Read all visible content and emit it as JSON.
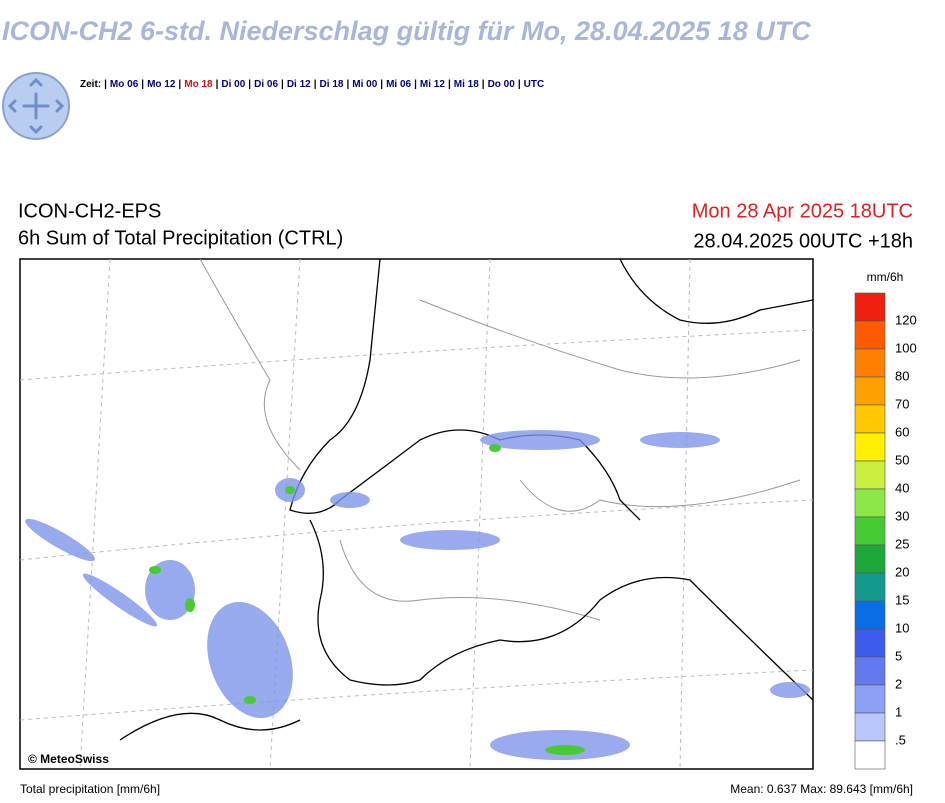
{
  "header": {
    "title": "ICON-CH2 6-std. Niederschlag gültig für Mo, 28.04.2025 18 UTC"
  },
  "nav": {
    "label": "Zeit:",
    "separator": "|",
    "links": [
      "Mo 06",
      "Mo 12",
      "Mo 18",
      "Di 00",
      "Di 06",
      "Di 12",
      "Di 18",
      "Mi 00",
      "Mi 06",
      "Mi 12",
      "Mi 18",
      "Do 00",
      "UTC"
    ],
    "active": 2,
    "link_color": "#000080",
    "active_color": "#d01010"
  },
  "map": {
    "model": "ICON-CH2-EPS",
    "product": "6h Sum of Total Precipitation (CTRL)",
    "valid": "Mon 28 Apr 2025 18UTC",
    "run": "28.04.2025 00UTC +18h",
    "copyright": "© MeteoSwiss",
    "legend": {
      "unit": "mm/6h",
      "labels": [
        "120",
        "100",
        "80",
        "70",
        "60",
        "50",
        "40",
        "30",
        "25",
        "20",
        "15",
        "10",
        "5",
        "2",
        "1",
        ".5"
      ],
      "colors": [
        "#ee2010",
        "#ff5a00",
        "#ff8000",
        "#ffa000",
        "#ffc800",
        "#fff000",
        "#c8f03c",
        "#8ce646",
        "#46cc32",
        "#1ea83c",
        "#149a8c",
        "#0a6ee6",
        "#3c5cee",
        "#6478f0",
        "#8ca0f5",
        "#b8c6fa",
        "#ffffff"
      ]
    }
  },
  "footer": {
    "left": "Total precipitation [mm/6h]",
    "right": "Mean:  0.637 Max:  89.643 [mm/6h]"
  }
}
